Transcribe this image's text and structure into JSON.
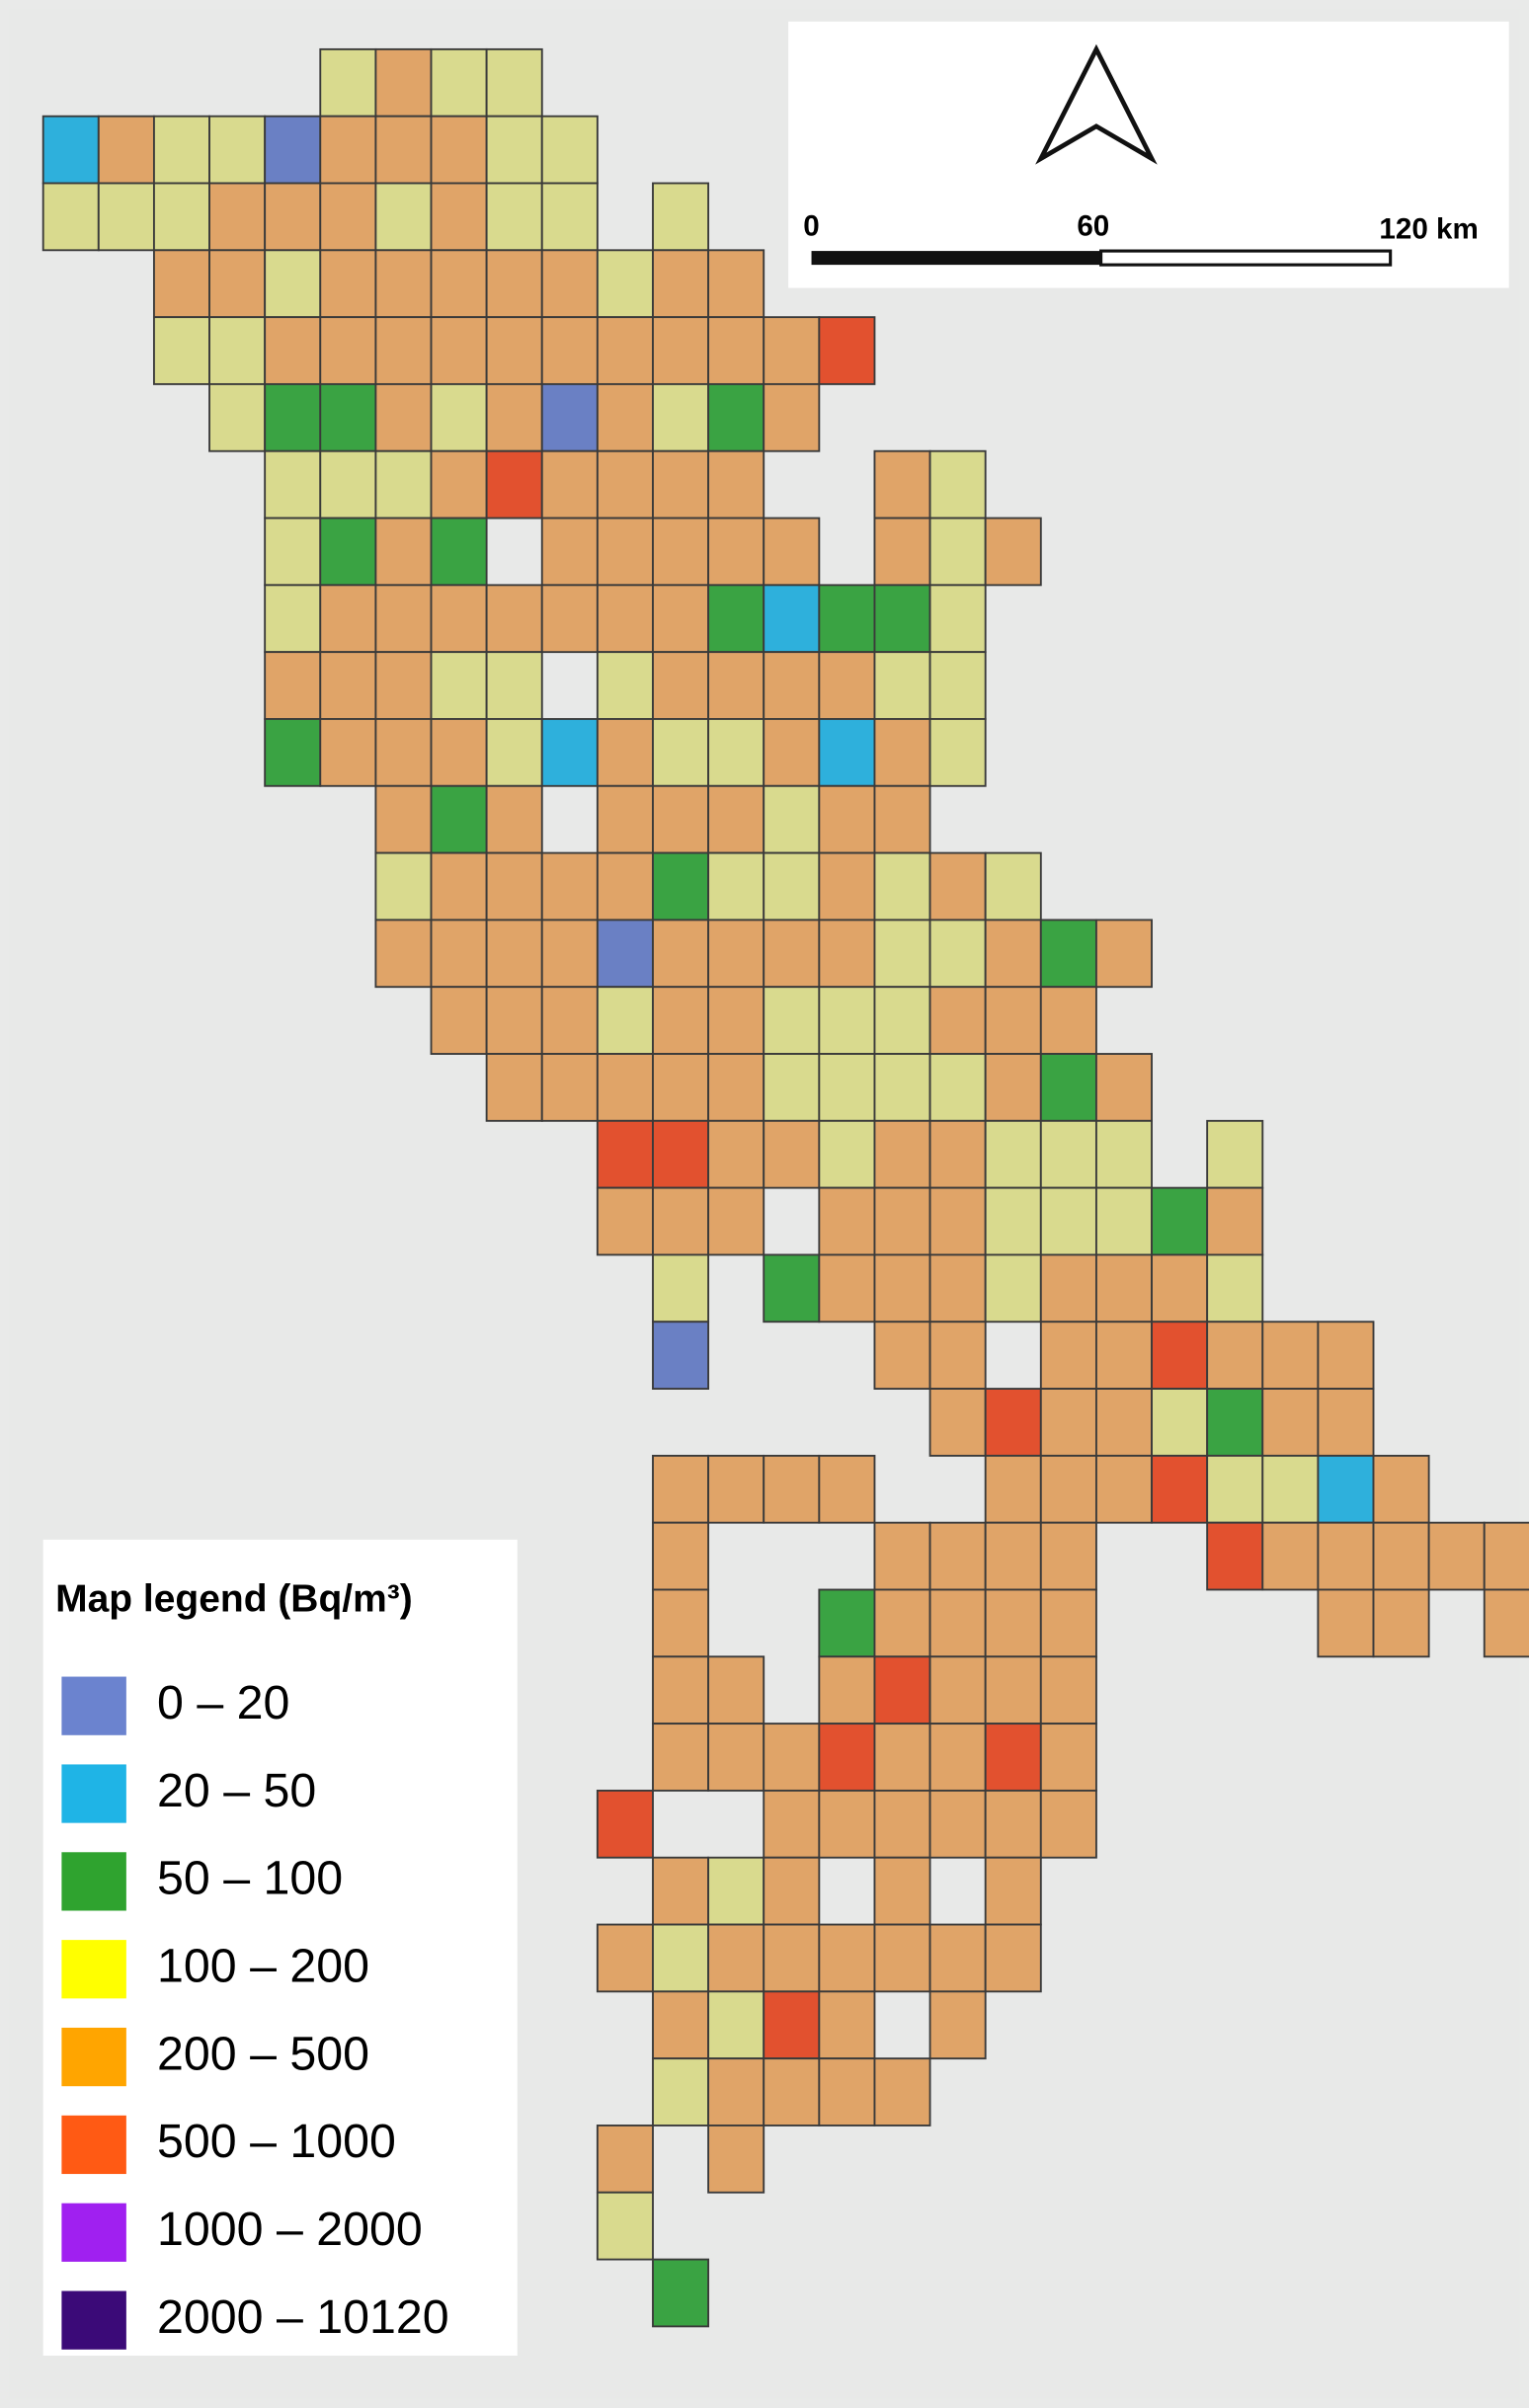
{
  "legend": {
    "title": "Map legend (Bq/m³)",
    "items": [
      {
        "label": "0 – 20",
        "color": "#6b83cf"
      },
      {
        "label": "20 – 50",
        "color": "#1fb4e6"
      },
      {
        "label": "50 – 100",
        "color": "#2fa32f"
      },
      {
        "label": "100 – 200",
        "color": "#ffff00"
      },
      {
        "label": "200 – 500",
        "color": "#ffa500"
      },
      {
        "label": "500 – 1000",
        "color": "#ff5a14"
      },
      {
        "label": "1000 – 2000",
        "color": "#a020f0"
      },
      {
        "label": "2000 – 10120",
        "color": "#3b0a78"
      }
    ]
  },
  "scale_bar": {
    "labels": [
      "0",
      "60",
      "120 km"
    ]
  }
}
